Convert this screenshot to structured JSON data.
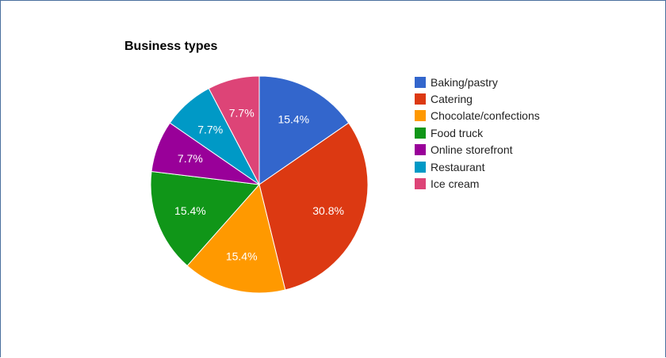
{
  "chart_data": {
    "type": "pie",
    "title": "Business types",
    "categories": [
      "Baking/pastry",
      "Catering",
      "Chocolate/confections",
      "Food truck",
      "Online storefront",
      "Restaurant",
      "Ice cream"
    ],
    "values": [
      15.4,
      30.8,
      15.4,
      15.4,
      7.7,
      7.7,
      7.7
    ],
    "data_labels": [
      "15.4%",
      "30.8%",
      "15.4%",
      "15.4%",
      "7.7%",
      "7.7%",
      "7.7%"
    ],
    "colors": [
      "#3366cc",
      "#dc3912",
      "#ff9900",
      "#109618",
      "#990099",
      "#0099c6",
      "#dd4477"
    ],
    "legend": "right"
  }
}
